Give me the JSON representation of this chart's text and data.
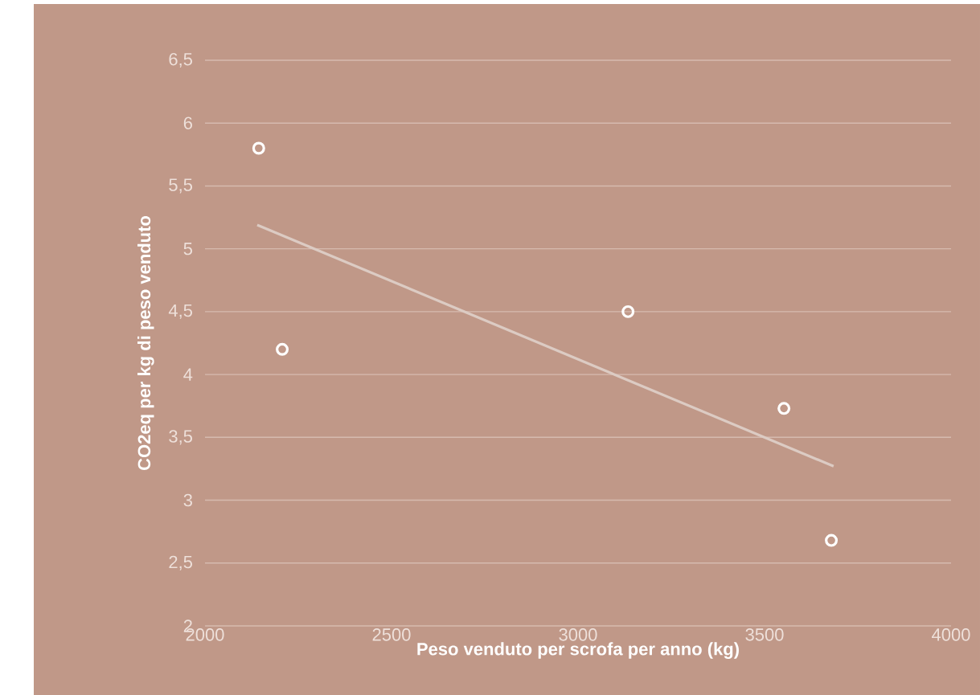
{
  "chart_data": {
    "type": "scatter",
    "xlabel": "Peso venduto per scrofa per anno (kg)",
    "ylabel": "CO2eq per kg di peso venduto",
    "xlim": [
      2000,
      4000
    ],
    "xticks": [
      2000,
      2500,
      3000,
      3500,
      4000
    ],
    "ylim": [
      2,
      6.5
    ],
    "yticks": [
      2,
      {
        "value": 2.5,
        "label": "2,5"
      },
      3,
      {
        "value": 3.5,
        "label": "3,5"
      },
      4,
      {
        "value": 4.5,
        "label": "4,5"
      },
      5,
      {
        "value": 5.5,
        "label": "5,5"
      },
      6,
      {
        "value": 6.5,
        "label": "6,5"
      }
    ],
    "grid": "y",
    "marker": "circle",
    "series": [
      {
        "color": "#ffffff",
        "x": [
          2144,
          2207,
          3134,
          3552,
          3679
        ],
        "values": [
          5.8,
          4.2,
          4.5,
          3.73,
          2.68
        ]
      },
      {
        "type": "line",
        "marker": "none",
        "color": "#dccbc3",
        "x": [
          2140,
          3685
        ],
        "values": [
          5.19,
          3.27
        ]
      }
    ]
  }
}
